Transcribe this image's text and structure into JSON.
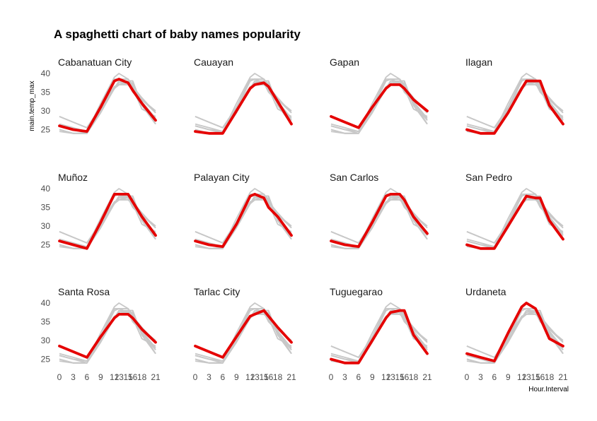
{
  "chart_data": {
    "type": "line",
    "title": "A spaghetti chart of baby names popularity",
    "xlabel": "Hour.Interval",
    "ylabel": "main.temp_max",
    "x": [
      0,
      3,
      6,
      9,
      12,
      13,
      15,
      16,
      18,
      21
    ],
    "x_tick_labels": [
      "0",
      "3",
      "6",
      "9",
      "12",
      "13",
      "15",
      "16",
      "18",
      "21"
    ],
    "y_ticks": [
      25,
      30,
      35,
      40
    ],
    "ylim": [
      23,
      41
    ],
    "xlim": [
      0,
      21
    ],
    "layout": "facet grid 3 rows x 4 columns",
    "grid": false,
    "colors": {
      "highlight": "#e50000",
      "background_series": "#c8c8c8"
    },
    "panels": [
      {
        "name": "Cabanatuan City",
        "values": [
          26,
          25,
          24.5,
          31,
          38,
          38.5,
          37.5,
          35.5,
          32,
          27.5
        ]
      },
      {
        "name": "Cauayan",
        "values": [
          24.5,
          24,
          24,
          30,
          36,
          37,
          37.5,
          36.5,
          32.5,
          26.5
        ]
      },
      {
        "name": "Gapan",
        "values": [
          28.5,
          27,
          25.5,
          31,
          36,
          37,
          37,
          36,
          33,
          30
        ]
      },
      {
        "name": "Ilagan",
        "values": [
          25,
          24,
          24,
          29.5,
          36,
          38,
          38,
          38,
          31.5,
          26.5
        ]
      },
      {
        "name": "Muñoz",
        "values": [
          26,
          25,
          24,
          31,
          38.5,
          38.5,
          38.5,
          36.5,
          32.5,
          27.5
        ]
      },
      {
        "name": "Palayan City",
        "values": [
          26,
          25,
          24.5,
          30.5,
          38,
          38.5,
          37.5,
          35,
          32.5,
          27.5
        ]
      },
      {
        "name": "San Carlos",
        "values": [
          26,
          25,
          24.5,
          31,
          38,
          38.5,
          38.5,
          37,
          32.5,
          28
        ]
      },
      {
        "name": "San Pedro",
        "values": [
          25,
          24,
          24,
          30,
          36,
          38,
          37.5,
          37.5,
          31.5,
          26.5
        ]
      },
      {
        "name": "Santa Rosa",
        "values": [
          28.5,
          27,
          25.5,
          31,
          36,
          37,
          37,
          36,
          33,
          29.5
        ]
      },
      {
        "name": "Tarlac City",
        "values": [
          28.5,
          27,
          25.5,
          31,
          36.5,
          37,
          38,
          36.5,
          33.5,
          29.5
        ]
      },
      {
        "name": "Tuguegarao",
        "values": [
          25,
          24,
          24,
          30,
          36,
          37.5,
          38,
          38,
          31.5,
          26.5
        ]
      },
      {
        "name": "Urdaneta",
        "values": [
          26.5,
          25.5,
          24.5,
          32,
          39,
          40,
          38.5,
          36,
          30.5,
          28.5
        ]
      }
    ]
  }
}
